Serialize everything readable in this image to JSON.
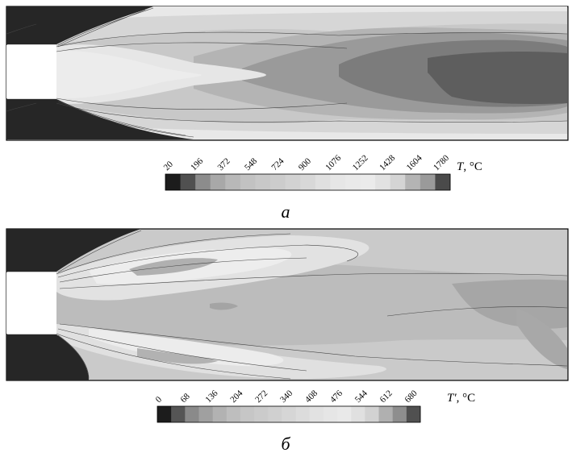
{
  "panels": [
    {
      "label": "а",
      "colorbar": {
        "symbol": "T",
        "unit": ", °C",
        "ticks": [
          "20",
          "196",
          "372",
          "548",
          "724",
          "900",
          "1076",
          "1252",
          "1428",
          "1604",
          "1780"
        ],
        "colors": [
          "#1c1c1c",
          "#505050",
          "#8c8c8c",
          "#a8a8a8",
          "#b8b8b8",
          "#c2c2c2",
          "#c8c8c8",
          "#cccccc",
          "#d2d2d2",
          "#d8d8d8",
          "#e0e0e0",
          "#e6e6e6",
          "#e9e9e9",
          "#ebebeb",
          "#e2e2e2",
          "#d4d4d4",
          "#b4b4b4",
          "#9a9a9a",
          "#4a4a4a"
        ]
      }
    },
    {
      "label": "б",
      "colorbar": {
        "symbol": "T′",
        "unit": ", °C",
        "ticks": [
          "0",
          "68",
          "136",
          "204",
          "272",
          "340",
          "408",
          "476",
          "544",
          "612",
          "680"
        ],
        "colors": [
          "#1c1c1c",
          "#555555",
          "#8a8a8a",
          "#a0a0a0",
          "#b2b2b2",
          "#bebebe",
          "#c6c6c6",
          "#cbcbcb",
          "#d0d0d0",
          "#d6d6d6",
          "#dcdcdc",
          "#e2e2e2",
          "#e6e6e6",
          "#e9e9e9",
          "#e0e0e0",
          "#d2d2d2",
          "#b0b0b0",
          "#8e8e8e",
          "#505050"
        ]
      }
    }
  ]
}
